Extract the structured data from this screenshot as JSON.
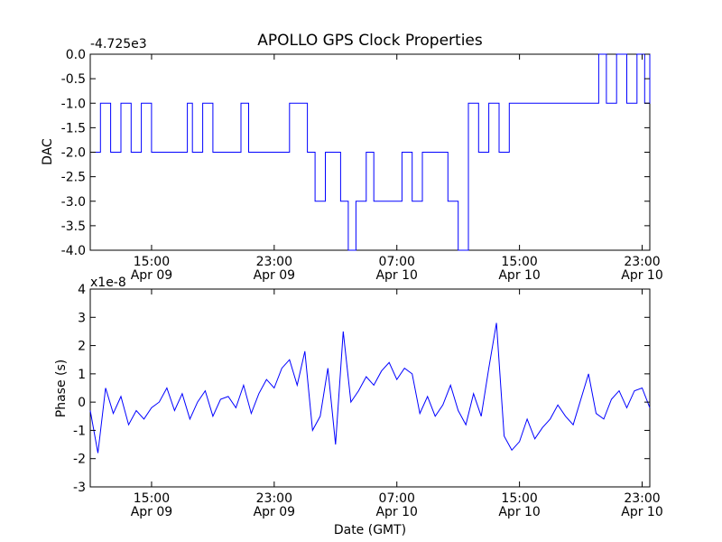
{
  "figure": {
    "title": "APOLLO GPS Clock Properties",
    "xlabel": "Date (GMT)"
  },
  "chart_data": [
    {
      "type": "line",
      "title": "APOLLO GPS Clock Properties",
      "ylabel": "DAC",
      "xlabel": "",
      "offset_text": "-4.725e3",
      "ylim": [
        -4.0,
        0.0
      ],
      "yticks": [
        "0.0",
        "-0.5",
        "-1.0",
        "-1.5",
        "-2.0",
        "-2.5",
        "-3.0",
        "-3.5",
        "-4.0"
      ],
      "xlim": [
        "2009-04-09 11:00",
        "2009-04-10 23:30"
      ],
      "xticks": [
        {
          "time": "15:00",
          "date": "Apr 09",
          "at": "2009-04-09 15:00"
        },
        {
          "time": "23:00",
          "date": "Apr 09",
          "at": "2009-04-09 23:00"
        },
        {
          "time": "07:00",
          "date": "Apr 10",
          "at": "2009-04-10 07:00"
        },
        {
          "time": "15:00",
          "date": "Apr 10",
          "at": "2009-04-10 15:00"
        },
        {
          "time": "23:00",
          "date": "Apr 10",
          "at": "2009-04-10 23:00"
        }
      ],
      "grid": false,
      "series": [
        {
          "color": "#0000ff",
          "x": [
            "2009-04-09 11:00",
            "2009-04-09 11:40",
            "2009-04-09 12:20",
            "2009-04-09 13:00",
            "2009-04-09 13:40",
            "2009-04-09 14:20",
            "2009-04-09 15:00",
            "2009-04-09 16:20",
            "2009-04-09 17:20",
            "2009-04-09 17:40",
            "2009-04-09 18:20",
            "2009-04-09 19:00",
            "2009-04-09 20:20",
            "2009-04-09 20:50",
            "2009-04-09 21:20",
            "2009-04-09 22:30",
            "2009-04-10 00:00",
            "2009-04-10 01:10",
            "2009-04-10 01:40",
            "2009-04-10 02:20",
            "2009-04-10 03:20",
            "2009-04-10 03:50",
            "2009-04-10 04:20",
            "2009-04-10 04:40",
            "2009-04-10 05:00",
            "2009-04-10 05:30",
            "2009-04-10 06:20",
            "2009-04-10 07:20",
            "2009-04-10 08:00",
            "2009-04-10 08:40",
            "2009-04-10 09:40",
            "2009-04-10 10:20",
            "2009-04-10 11:00",
            "2009-04-10 11:40",
            "2009-04-10 12:20",
            "2009-04-10 13:00",
            "2009-04-10 13:40",
            "2009-04-10 14:20",
            "2009-04-10 15:00",
            "2009-04-10 16:00",
            "2009-04-10 17:20",
            "2009-04-10 18:40",
            "2009-04-10 19:30",
            "2009-04-10 20:10",
            "2009-04-10 20:40",
            "2009-04-10 21:20",
            "2009-04-10 22:00",
            "2009-04-10 22:40",
            "2009-04-10 23:10",
            "2009-04-10 23:30"
          ],
          "values": [
            -2.0,
            -1.0,
            -2.0,
            -1.0,
            -2.0,
            -1.0,
            -2.0,
            -2.0,
            -1.0,
            -2.0,
            -1.0,
            -2.0,
            -2.0,
            -1.0,
            -2.0,
            -2.0,
            -1.0,
            -2.0,
            -3.0,
            -2.0,
            -3.0,
            -4.0,
            -3.0,
            -3.0,
            -2.0,
            -3.0,
            -3.0,
            -2.0,
            -3.0,
            -2.0,
            -2.0,
            -3.0,
            -4.0,
            -1.0,
            -2.0,
            -1.0,
            -2.0,
            -1.0,
            -1.0,
            -1.0,
            -1.0,
            -1.0,
            -1.0,
            0.0,
            -1.0,
            0.0,
            -1.0,
            0.0,
            -1.0,
            0.0
          ]
        }
      ]
    },
    {
      "type": "line",
      "title": "",
      "ylabel": "Phase (s)",
      "xlabel": "Date (GMT)",
      "offset_text": "x1e-8",
      "ylim": [
        -3,
        4
      ],
      "yticks": [
        "4",
        "3",
        "2",
        "1",
        "0",
        "-1",
        "-2",
        "-3"
      ],
      "xlim": [
        "2009-04-09 11:00",
        "2009-04-10 23:30"
      ],
      "xticks": [
        {
          "time": "15:00",
          "date": "Apr 09",
          "at": "2009-04-09 15:00"
        },
        {
          "time": "23:00",
          "date": "Apr 09",
          "at": "2009-04-09 23:00"
        },
        {
          "time": "07:00",
          "date": "Apr 10",
          "at": "2009-04-10 07:00"
        },
        {
          "time": "15:00",
          "date": "Apr 10",
          "at": "2009-04-10 15:00"
        },
        {
          "time": "23:00",
          "date": "Apr 10",
          "at": "2009-04-10 23:00"
        }
      ],
      "grid": false,
      "series": [
        {
          "color": "#0000ff",
          "x": [
            "2009-04-09 11:00",
            "2009-04-09 11:30",
            "2009-04-09 12:00",
            "2009-04-09 12:30",
            "2009-04-09 13:00",
            "2009-04-09 13:30",
            "2009-04-09 14:00",
            "2009-04-09 14:30",
            "2009-04-09 15:00",
            "2009-04-09 15:30",
            "2009-04-09 16:00",
            "2009-04-09 16:30",
            "2009-04-09 17:00",
            "2009-04-09 17:30",
            "2009-04-09 18:00",
            "2009-04-09 18:30",
            "2009-04-09 19:00",
            "2009-04-09 19:30",
            "2009-04-09 20:00",
            "2009-04-09 20:30",
            "2009-04-09 21:00",
            "2009-04-09 21:30",
            "2009-04-09 22:00",
            "2009-04-09 22:30",
            "2009-04-09 23:00",
            "2009-04-09 23:30",
            "2009-04-10 00:00",
            "2009-04-10 00:30",
            "2009-04-10 01:00",
            "2009-04-10 01:30",
            "2009-04-10 02:00",
            "2009-04-10 02:30",
            "2009-04-10 03:00",
            "2009-04-10 03:30",
            "2009-04-10 04:00",
            "2009-04-10 04:30",
            "2009-04-10 05:00",
            "2009-04-10 05:30",
            "2009-04-10 06:00",
            "2009-04-10 06:30",
            "2009-04-10 07:00",
            "2009-04-10 07:30",
            "2009-04-10 08:00",
            "2009-04-10 08:30",
            "2009-04-10 09:00",
            "2009-04-10 09:30",
            "2009-04-10 10:00",
            "2009-04-10 10:30",
            "2009-04-10 11:00",
            "2009-04-10 11:30",
            "2009-04-10 12:00",
            "2009-04-10 12:30",
            "2009-04-10 13:00",
            "2009-04-10 13:30",
            "2009-04-10 14:00",
            "2009-04-10 14:30",
            "2009-04-10 15:00",
            "2009-04-10 15:30",
            "2009-04-10 16:00",
            "2009-04-10 16:30",
            "2009-04-10 17:00",
            "2009-04-10 17:30",
            "2009-04-10 18:00",
            "2009-04-10 18:30",
            "2009-04-10 19:00",
            "2009-04-10 19:30",
            "2009-04-10 20:00",
            "2009-04-10 20:30",
            "2009-04-10 21:00",
            "2009-04-10 21:30",
            "2009-04-10 22:00",
            "2009-04-10 22:30",
            "2009-04-10 23:00",
            "2009-04-10 23:30"
          ],
          "values": [
            -0.3,
            -1.8,
            0.5,
            -0.4,
            0.2,
            -0.8,
            -0.3,
            -0.6,
            -0.2,
            0.0,
            0.5,
            -0.3,
            0.3,
            -0.6,
            0.0,
            0.4,
            -0.5,
            0.1,
            0.2,
            -0.2,
            0.6,
            -0.4,
            0.3,
            0.8,
            0.5,
            1.2,
            1.5,
            0.6,
            1.8,
            -1.0,
            -0.5,
            1.2,
            -1.5,
            2.5,
            0.0,
            0.4,
            0.9,
            0.6,
            1.1,
            1.4,
            0.8,
            1.2,
            1.0,
            -0.4,
            0.2,
            -0.5,
            -0.1,
            0.6,
            -0.3,
            -0.8,
            0.3,
            -0.5,
            1.2,
            2.8,
            -1.2,
            -1.7,
            -1.4,
            -0.6,
            -1.3,
            -0.9,
            -0.6,
            -0.1,
            -0.5,
            -0.8,
            0.1,
            1.0,
            -0.4,
            -0.6,
            0.1,
            0.4,
            -0.2,
            0.4,
            0.5,
            -0.2
          ]
        }
      ]
    }
  ]
}
